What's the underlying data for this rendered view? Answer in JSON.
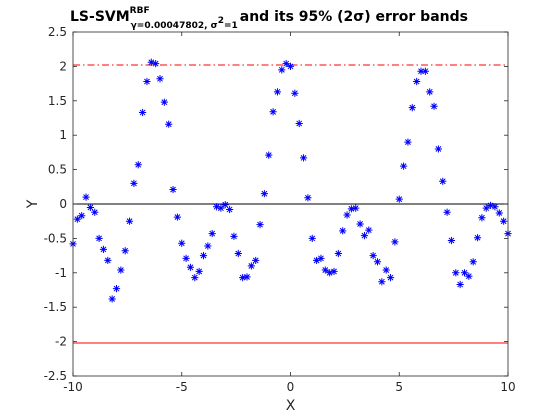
{
  "chart_data": {
    "type": "scatter",
    "title": {
      "main": "LS-SVM",
      "superscript": "RBF",
      "subscript": "γ=0.00047802, σ",
      "subscript_power": "2",
      "subscript_tail": "=1",
      "rest": " and its 95% (2σ) error bands"
    },
    "xlabel": "X",
    "ylabel": "Y",
    "xlim": [
      -10,
      10
    ],
    "ylim": [
      -2.5,
      2.5
    ],
    "xticks": [
      -10,
      -5,
      0,
      5,
      10
    ],
    "yticks": [
      -2.5,
      -2,
      -1.5,
      -1,
      -0.5,
      0,
      0.5,
      1,
      1.5,
      2,
      2.5
    ],
    "xtick_labels": [
      "-10",
      "-5",
      "0",
      "5",
      "10"
    ],
    "ytick_labels": [
      "-2.5",
      "-2",
      "-1.5",
      "-1",
      "-0.5",
      "0",
      "0.5",
      "1",
      "1.5",
      "2",
      "2.5"
    ],
    "grid": false,
    "colors": {
      "points": "#0000ff",
      "fit": "#000000",
      "upper_band": "#ff0000",
      "lower_band": "#ff0000",
      "axes": "#262626"
    },
    "fit_line": {
      "x": [
        -10,
        10
      ],
      "y": [
        0.0,
        0.0
      ]
    },
    "upper_band": {
      "x": [
        -10,
        10
      ],
      "y": [
        2.02,
        2.02
      ],
      "style": "dash-dot"
    },
    "lower_band": {
      "x": [
        -10,
        10
      ],
      "y": [
        -2.02,
        -2.02
      ],
      "style": "solid"
    },
    "points": {
      "x": [
        -10.0,
        -9.8,
        -9.6,
        -9.4,
        -9.2,
        -9.0,
        -8.8,
        -8.6,
        -8.4,
        -8.2,
        -8.0,
        -7.8,
        -7.6,
        -7.4,
        -7.2,
        -7.0,
        -6.8,
        -6.6,
        -6.4,
        -6.2,
        -6.0,
        -5.8,
        -5.6,
        -5.4,
        -5.2,
        -5.0,
        -4.8,
        -4.6,
        -4.4,
        -4.2,
        -4.0,
        -3.8,
        -3.6,
        -3.4,
        -3.2,
        -3.0,
        -2.8,
        -2.6,
        -2.4,
        -2.2,
        -2.0,
        -1.8,
        -1.6,
        -1.4,
        -1.2,
        -1.0,
        -0.8,
        -0.6,
        -0.4,
        -0.2,
        0.0,
        0.2,
        0.4,
        0.6,
        0.8,
        1.0,
        1.2,
        1.4,
        1.6,
        1.8,
        2.0,
        2.2,
        2.4,
        2.6,
        2.8,
        3.0,
        3.2,
        3.4,
        3.6,
        3.8,
        4.0,
        4.2,
        4.4,
        4.6,
        4.8,
        5.0,
        5.2,
        5.4,
        5.6,
        5.8,
        6.0,
        6.2,
        6.4,
        6.6,
        6.8,
        7.0,
        7.2,
        7.4,
        7.6,
        7.8,
        8.0,
        8.2,
        8.4,
        8.6,
        8.8,
        9.0,
        9.2,
        9.4,
        9.6,
        9.8,
        10.0
      ],
      "y": [
        -0.58,
        -0.22,
        -0.17,
        0.1,
        -0.05,
        -0.12,
        -0.5,
        -0.66,
        -0.82,
        -1.38,
        -1.23,
        -0.96,
        -0.68,
        -0.25,
        0.3,
        0.57,
        1.33,
        1.78,
        2.06,
        2.04,
        1.82,
        1.48,
        1.16,
        0.21,
        -0.19,
        -0.57,
        -0.79,
        -0.92,
        -1.07,
        -0.98,
        -0.75,
        -0.61,
        -0.43,
        -0.04,
        -0.06,
        -0.01,
        -0.08,
        -0.47,
        -0.72,
        -1.07,
        -1.06,
        -0.9,
        -0.82,
        -0.3,
        0.15,
        0.71,
        1.34,
        1.63,
        1.95,
        2.04,
        2.0,
        1.61,
        1.17,
        0.67,
        0.09,
        -0.5,
        -0.82,
        -0.79,
        -0.96,
        -1.0,
        -0.98,
        -0.72,
        -0.39,
        -0.16,
        -0.07,
        -0.06,
        -0.29,
        -0.46,
        -0.38,
        -0.75,
        -0.84,
        -1.13,
        -0.96,
        -1.07,
        -0.55,
        0.07,
        0.55,
        0.9,
        1.4,
        1.78,
        1.93,
        1.93,
        1.63,
        1.42,
        0.8,
        0.33,
        -0.12,
        -0.53,
        -1.0,
        -1.17,
        -1.0,
        -1.05,
        -0.84,
        -0.49,
        -0.2,
        -0.06,
        -0.02,
        -0.04,
        -0.13,
        -0.25,
        -0.43
      ]
    }
  }
}
